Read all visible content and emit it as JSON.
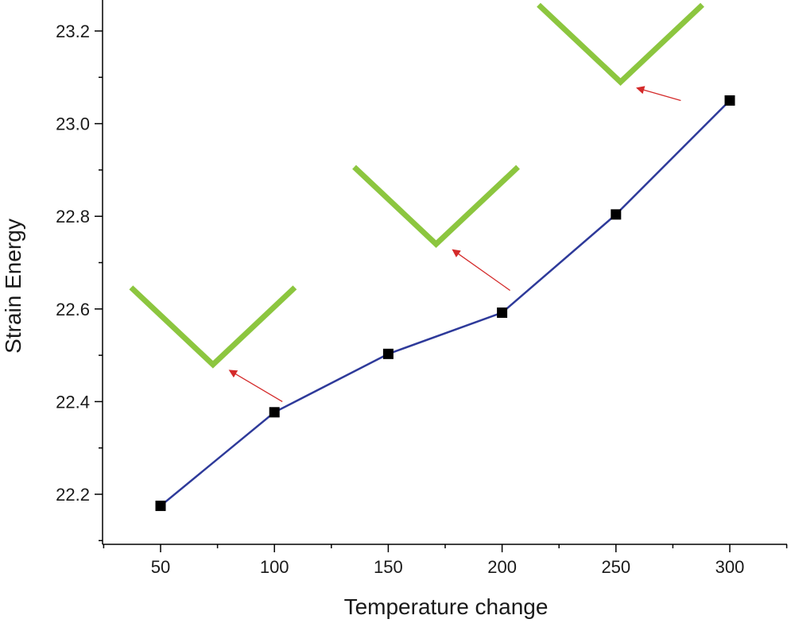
{
  "chart_data": {
    "type": "line",
    "title": "",
    "xlabel": "Temperature change",
    "ylabel": "Strain Energy",
    "x": [
      50,
      100,
      150,
      200,
      250,
      300
    ],
    "xlim": [
      25,
      325
    ],
    "ylim": [
      22.1,
      23.25
    ],
    "xticks": [
      50,
      100,
      150,
      200,
      250,
      300
    ],
    "xtick_labels": [
      "50",
      "100",
      "150",
      "200",
      "250",
      "300"
    ],
    "yticks": [
      22.2,
      22.4,
      22.6,
      22.8,
      23.0,
      23.2
    ],
    "ytick_labels": [
      "22.2",
      "22.4",
      "22.6",
      "22.8",
      "23.0",
      "23.2"
    ],
    "grid": false,
    "series": [
      {
        "name": "Strain Energy",
        "values": [
          22.175,
          22.377,
          22.503,
          22.592,
          22.804,
          23.05
        ],
        "marker": "square"
      }
    ],
    "annotations": [
      {
        "type": "v-shape",
        "x": 73,
        "y": 22.48,
        "arrow_from_x": 100,
        "arrow_from_y": 22.4
      },
      {
        "type": "v-shape",
        "x": 171,
        "y": 22.74,
        "arrow_from_x": 200,
        "arrow_from_y": 22.64
      },
      {
        "type": "v-shape",
        "x": 252,
        "y": 23.09,
        "arrow_from_x": 275,
        "arrow_from_y": 23.05
      }
    ]
  },
  "colors": {
    "line": "#2e3a9a",
    "marker": "#000000",
    "v_shape": "#8cc63f",
    "arrow": "#d42a2a"
  }
}
